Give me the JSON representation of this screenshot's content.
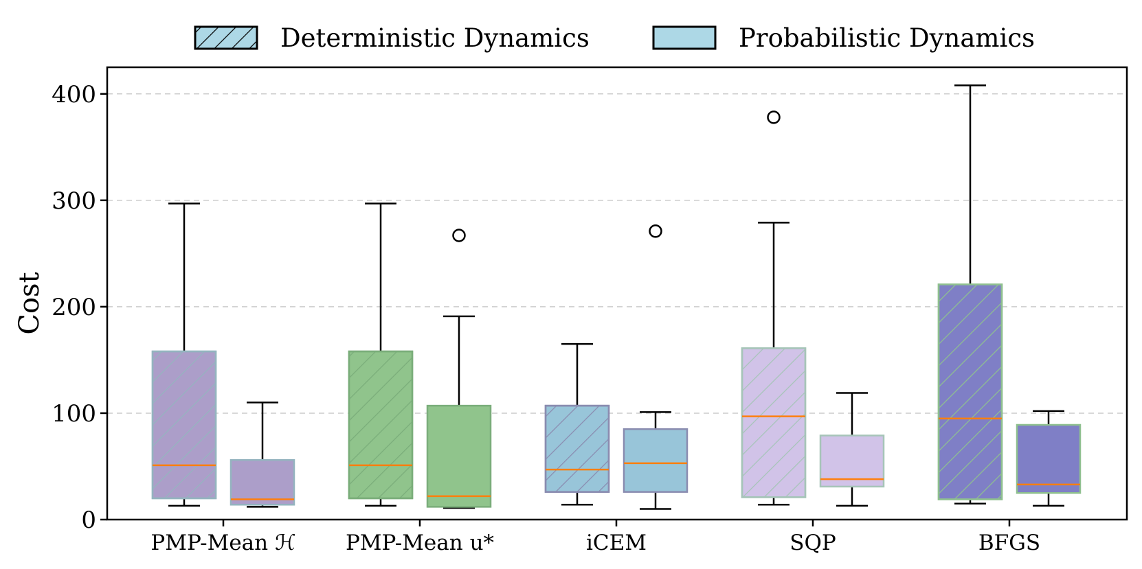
{
  "chart_data": {
    "type": "boxplot",
    "ylabel": "Cost",
    "xlabel": "",
    "ylim": [
      0,
      425
    ],
    "yticks": [
      0,
      100,
      200,
      300,
      400
    ],
    "grid": "horizontal-dashed",
    "legend_position": "top-center",
    "legend": [
      {
        "label": "Deterministic Dynamics",
        "hatched": true,
        "color": "#add8e6"
      },
      {
        "label": "Probabilistic Dynamics",
        "hatched": false,
        "color": "#add8e6"
      }
    ],
    "categories": [
      "PMP-Mean ℋ",
      "PMP-Mean u*",
      "iCEM",
      "SQP",
      "BFGS"
    ],
    "groups": [
      {
        "category": "PMP-Mean ℋ",
        "color": "#ac9ec9",
        "edge": "#94b4bf",
        "deterministic": {
          "whislo": 13,
          "q1": 20,
          "med": 51,
          "q3": 158,
          "whishi": 297,
          "fliers": []
        },
        "probabilistic": {
          "whislo": 12,
          "q1": 14,
          "med": 19,
          "q3": 56,
          "whishi": 110,
          "fliers": []
        }
      },
      {
        "category": "PMP-Mean u*",
        "color": "#90c48c",
        "edge": "#7aad7a",
        "deterministic": {
          "whislo": 13,
          "q1": 20,
          "med": 51,
          "q3": 158,
          "whishi": 297,
          "fliers": []
        },
        "probabilistic": {
          "whislo": 11,
          "q1": 12,
          "med": 22,
          "q3": 107,
          "whishi": 191,
          "fliers": [
            267
          ]
        }
      },
      {
        "category": "iCEM",
        "color": "#98c5d9",
        "edge": "#8a8cb0",
        "deterministic": {
          "whislo": 14,
          "q1": 26,
          "med": 47,
          "q3": 107,
          "whishi": 165,
          "fliers": []
        },
        "probabilistic": {
          "whislo": 10,
          "q1": 26,
          "med": 53,
          "q3": 85,
          "whishi": 101,
          "fliers": [
            271
          ]
        }
      },
      {
        "category": "SQP",
        "color": "#d1c3e8",
        "edge": "#a6c4b8",
        "deterministic": {
          "whislo": 14,
          "q1": 21,
          "med": 97,
          "q3": 161,
          "whishi": 279,
          "fliers": [
            378
          ]
        },
        "probabilistic": {
          "whislo": 13,
          "q1": 31,
          "med": 38,
          "q3": 79,
          "whishi": 119,
          "fliers": []
        }
      },
      {
        "category": "BFGS",
        "color": "#7f7fc6",
        "edge": "#8fc08f",
        "deterministic": {
          "whislo": 15,
          "q1": 19,
          "med": 95,
          "q3": 221,
          "whishi": 408,
          "fliers": []
        },
        "probabilistic": {
          "whislo": 13,
          "q1": 25,
          "med": 33,
          "q3": 89,
          "whishi": 102,
          "fliers": []
        }
      }
    ],
    "colors": {
      "median": "#ff7f0e",
      "whisker": "#000000",
      "grid": "#cccccc"
    }
  }
}
